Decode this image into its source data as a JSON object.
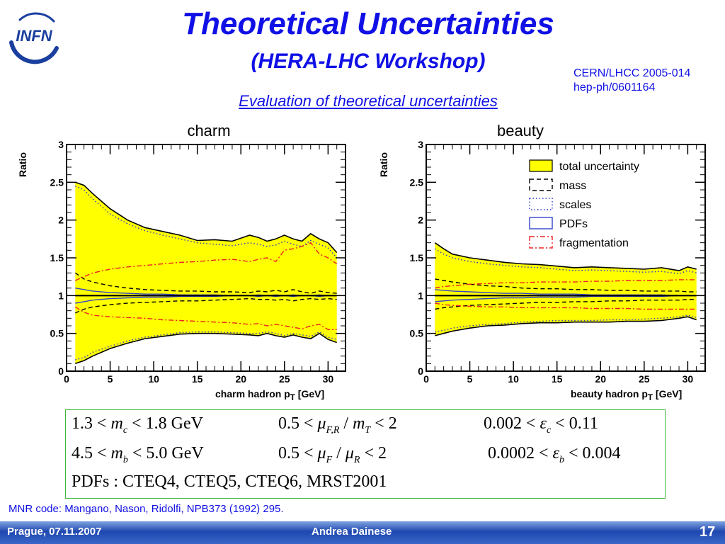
{
  "header": {
    "logo_text": "INFN",
    "title": "Theoretical Uncertainties",
    "subtitle": "(HERA-LHC Workshop)",
    "ref_line1": "CERN/LHCC 2005-014",
    "ref_line2": "hep-ph/0601164",
    "eval_text": "Evaluation of theoretical uncertainties"
  },
  "chart_data": [
    {
      "type": "area",
      "title": "charm",
      "xlabel": "charm hadron p_T [GeV]",
      "ylabel": "Ratio",
      "xlim": [
        0,
        32
      ],
      "ylim": [
        0,
        3
      ],
      "xticks": [
        0,
        5,
        10,
        15,
        20,
        25,
        30
      ],
      "yticks": [
        0,
        0.5,
        1,
        1.5,
        2,
        2.5,
        3
      ],
      "x": [
        1,
        2,
        3,
        5,
        7,
        9,
        11,
        13,
        15,
        17,
        19,
        21,
        22,
        23,
        24,
        25,
        26,
        27,
        28,
        29,
        30,
        31
      ],
      "series": [
        {
          "name": "total uncertainty",
          "style": "band",
          "upper": [
            2.5,
            2.46,
            2.35,
            2.15,
            2.0,
            1.9,
            1.85,
            1.8,
            1.73,
            1.74,
            1.72,
            1.8,
            1.77,
            1.72,
            1.75,
            1.8,
            1.75,
            1.72,
            1.82,
            1.75,
            1.7,
            1.57
          ],
          "lower": [
            0.1,
            0.14,
            0.2,
            0.3,
            0.37,
            0.43,
            0.46,
            0.49,
            0.5,
            0.5,
            0.49,
            0.48,
            0.47,
            0.5,
            0.47,
            0.45,
            0.48,
            0.45,
            0.43,
            0.5,
            0.42,
            0.38
          ]
        },
        {
          "name": "mass",
          "style": "dashed",
          "upper": [
            1.3,
            1.22,
            1.18,
            1.13,
            1.1,
            1.08,
            1.07,
            1.06,
            1.06,
            1.05,
            1.05,
            1.04,
            1.06,
            1.05,
            1.07,
            1.05,
            1.08,
            1.05,
            1.03,
            1.06,
            1.04,
            1.03
          ],
          "lower": [
            0.77,
            0.82,
            0.85,
            0.88,
            0.9,
            0.91,
            0.92,
            0.93,
            0.93,
            0.94,
            0.95,
            0.96,
            0.95,
            0.95,
            0.94,
            0.95,
            0.93,
            0.95,
            0.96,
            0.95,
            0.96,
            0.95
          ]
        },
        {
          "name": "scales",
          "style": "dotted",
          "upper": [
            2.45,
            2.4,
            2.28,
            2.08,
            1.95,
            1.86,
            1.8,
            1.75,
            1.7,
            1.68,
            1.66,
            1.7,
            1.68,
            1.65,
            1.67,
            1.72,
            1.68,
            1.65,
            1.73,
            1.68,
            1.63,
            1.5
          ],
          "lower": [
            0.15,
            0.18,
            0.25,
            0.33,
            0.4,
            0.45,
            0.48,
            0.51,
            0.52,
            0.52,
            0.51,
            0.5,
            0.5,
            0.52,
            0.5,
            0.47,
            0.5,
            0.48,
            0.46,
            0.52,
            0.45,
            0.42
          ]
        },
        {
          "name": "PDFs",
          "style": "solid-blue",
          "upper": [
            1.1,
            1.08,
            1.06,
            1.04,
            1.03,
            1.02,
            1.02,
            1.01,
            1.01,
            1.01,
            1.0,
            1.0,
            1.01,
            1.0,
            1.01,
            1.0,
            1.01,
            1.0,
            1.0,
            1.01,
            1.0,
            1.0
          ],
          "lower": [
            0.9,
            0.92,
            0.94,
            0.96,
            0.97,
            0.98,
            0.98,
            0.99,
            0.99,
            0.99,
            1.0,
            1.0,
            0.99,
            1.0,
            0.99,
            1.0,
            0.99,
            1.0,
            1.0,
            0.99,
            1.0,
            1.0
          ]
        },
        {
          "name": "fragmentation",
          "style": "dashdot-red",
          "upper": [
            1.2,
            1.25,
            1.3,
            1.35,
            1.38,
            1.4,
            1.42,
            1.44,
            1.45,
            1.47,
            1.48,
            1.45,
            1.48,
            1.5,
            1.45,
            1.6,
            1.62,
            1.65,
            1.7,
            1.55,
            1.5,
            1.42
          ],
          "lower": [
            0.85,
            0.78,
            0.74,
            0.72,
            0.71,
            0.7,
            0.68,
            0.67,
            0.66,
            0.65,
            0.64,
            0.62,
            0.63,
            0.6,
            0.62,
            0.6,
            0.58,
            0.56,
            0.6,
            0.62,
            0.55,
            0.55
          ]
        }
      ]
    },
    {
      "type": "area",
      "title": "beauty",
      "xlabel": "beauty hadron p_T [GeV]",
      "ylabel": "Ratio",
      "xlim": [
        0,
        32
      ],
      "ylim": [
        0,
        3
      ],
      "xticks": [
        0,
        5,
        10,
        15,
        20,
        25,
        30
      ],
      "yticks": [
        0,
        0.5,
        1,
        1.5,
        2,
        2.5,
        3
      ],
      "legend": "top-right",
      "x": [
        1,
        2,
        3,
        5,
        7,
        9,
        11,
        13,
        15,
        17,
        19,
        21,
        23,
        25,
        27,
        29,
        30,
        31
      ],
      "series": [
        {
          "name": "total uncertainty",
          "style": "band",
          "upper": [
            1.7,
            1.62,
            1.55,
            1.5,
            1.47,
            1.44,
            1.42,
            1.41,
            1.39,
            1.37,
            1.38,
            1.37,
            1.36,
            1.35,
            1.37,
            1.33,
            1.38,
            1.35
          ],
          "lower": [
            0.47,
            0.5,
            0.53,
            0.57,
            0.6,
            0.61,
            0.63,
            0.64,
            0.64,
            0.65,
            0.65,
            0.65,
            0.66,
            0.66,
            0.67,
            0.7,
            0.72,
            0.68
          ]
        },
        {
          "name": "mass",
          "style": "dashed",
          "upper": [
            1.22,
            1.2,
            1.18,
            1.15,
            1.13,
            1.12,
            1.1,
            1.09,
            1.09,
            1.08,
            1.08,
            1.07,
            1.07,
            1.06,
            1.06,
            1.06,
            1.05,
            1.05
          ],
          "lower": [
            0.82,
            0.84,
            0.85,
            0.87,
            0.88,
            0.89,
            0.9,
            0.91,
            0.91,
            0.92,
            0.92,
            0.93,
            0.93,
            0.94,
            0.94,
            0.94,
            0.95,
            0.95
          ]
        },
        {
          "name": "scales",
          "style": "dotted",
          "upper": [
            1.62,
            1.55,
            1.5,
            1.45,
            1.42,
            1.4,
            1.38,
            1.37,
            1.35,
            1.33,
            1.34,
            1.33,
            1.32,
            1.31,
            1.32,
            1.29,
            1.33,
            1.3
          ],
          "lower": [
            0.52,
            0.54,
            0.57,
            0.6,
            0.62,
            0.63,
            0.65,
            0.66,
            0.67,
            0.67,
            0.67,
            0.68,
            0.68,
            0.69,
            0.7,
            0.72,
            0.74,
            0.71
          ]
        },
        {
          "name": "PDFs",
          "style": "solid-blue",
          "upper": [
            1.08,
            1.07,
            1.06,
            1.05,
            1.04,
            1.03,
            1.03,
            1.02,
            1.02,
            1.02,
            1.01,
            1.01,
            1.01,
            1.01,
            1.01,
            1.0,
            1.0,
            1.0
          ],
          "lower": [
            0.92,
            0.93,
            0.94,
            0.95,
            0.96,
            0.97,
            0.97,
            0.98,
            0.98,
            0.98,
            0.99,
            0.99,
            0.99,
            0.99,
            0.99,
            1.0,
            1.0,
            1.0
          ]
        },
        {
          "name": "fragmentation",
          "style": "dashdot-red",
          "upper": [
            1.1,
            1.12,
            1.13,
            1.15,
            1.16,
            1.17,
            1.17,
            1.18,
            1.18,
            1.18,
            1.19,
            1.19,
            1.2,
            1.2,
            1.2,
            1.21,
            1.21,
            1.21
          ],
          "lower": [
            0.9,
            0.88,
            0.87,
            0.86,
            0.85,
            0.85,
            0.84,
            0.84,
            0.84,
            0.84,
            0.83,
            0.83,
            0.83,
            0.82,
            0.82,
            0.82,
            0.82,
            0.82
          ]
        }
      ]
    }
  ],
  "equations": {
    "row1": {
      "a_pre": "1.3 <",
      "a_var": "m",
      "a_sub": "c",
      "a_post": "< 1.8 GeV",
      "b_pre": "0.5 <",
      "b_var": "μ",
      "b_sub": "F,R",
      "b_mid": "/",
      "b_var2": "m",
      "b_sub2": "T",
      "b_post": "< 2",
      "c_pre": "0.002 <",
      "c_var": "ε",
      "c_sub": "c",
      "c_post": "< 0.11"
    },
    "row2": {
      "a_pre": "4.5 <",
      "a_var": "m",
      "a_sub": "b",
      "a_post": "< 5.0 GeV",
      "b_pre": "0.5 <",
      "b_var": "μ",
      "b_sub": "F",
      "b_mid": "/",
      "b_var2": "μ",
      "b_sub2": "R",
      "b_post": "< 2",
      "c_pre": "0.0002 <",
      "c_var": "ε",
      "c_sub": "b",
      "c_post": "< 0.004"
    },
    "row3": "PDFs : CTEQ4, CTEQ5, CTEQ6, MRST2001"
  },
  "note": "MNR code: Mangano, Nason, Ridolfi, NPB373 (1992) 295.",
  "footer": {
    "date": "Prague, 07.11.2007",
    "author": "Andrea Dainese",
    "page": "17"
  },
  "colors": {
    "band": "#ffff00",
    "accent": "#1010e6",
    "frag": "#ee2222",
    "pdf": "#3344cc"
  }
}
